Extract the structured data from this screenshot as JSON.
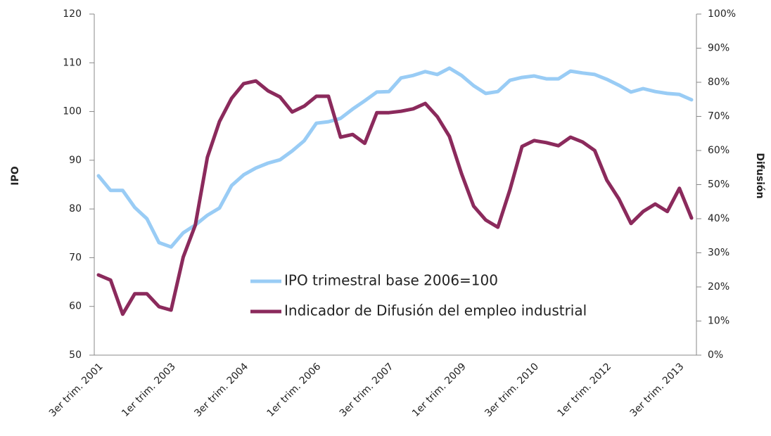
{
  "chart_data": {
    "type": "line",
    "y_label": "IPO",
    "y2_label": "Difusión",
    "categories": [
      "3er trim. 2001",
      null,
      null,
      null,
      null,
      null,
      "1er trim. 2003",
      null,
      null,
      null,
      null,
      null,
      "3er trim. 2004",
      null,
      null,
      null,
      null,
      null,
      "1er trim. 2006",
      null,
      null,
      null,
      null,
      null,
      "3er trim. 2007",
      null,
      null,
      null,
      null,
      null,
      "1er trim. 2009",
      null,
      null,
      null,
      null,
      null,
      "3er trim. 2010",
      null,
      null,
      null,
      null,
      null,
      "1er trim. 2012",
      null,
      null,
      null,
      null,
      null,
      "3er trim. 2013",
      null
    ],
    "ylim": [
      50,
      120
    ],
    "yticks": [
      50,
      60,
      70,
      80,
      90,
      100,
      110,
      120
    ],
    "y2lim": [
      0,
      100
    ],
    "y2ticks": [
      {
        "value": 0,
        "label": "0%"
      },
      {
        "value": 10,
        "label": "10%"
      },
      {
        "value": 20,
        "label": "20%"
      },
      {
        "value": 30,
        "label": "30%"
      },
      {
        "value": 40,
        "label": "40%"
      },
      {
        "value": 50,
        "label": "50%"
      },
      {
        "value": 60,
        "label": "60%"
      },
      {
        "value": 70,
        "label": "70%"
      },
      {
        "value": 80,
        "label": "80%"
      },
      {
        "value": 90,
        "label": "90%"
      },
      {
        "value": 100,
        "label": "100%"
      }
    ],
    "grid": false,
    "legend": "center",
    "series": [
      {
        "name": "IPO trimestral base 2006=100",
        "color": "#99ccf5",
        "values": [
          86.8,
          83.8,
          83.8,
          80.3,
          78,
          73.1,
          72.2,
          75.1,
          76.7,
          78.7,
          80.2,
          84.8,
          87,
          88.4,
          89.4,
          90.1,
          91.9,
          94,
          97.6,
          97.9,
          98.6,
          100.5,
          102.2,
          104,
          104.1,
          106.9,
          107.4,
          108.2,
          107.6,
          108.9,
          107.4,
          105.3,
          103.7,
          104.1,
          106.4,
          107,
          107.3,
          106.7,
          106.7,
          108.3,
          107.9,
          107.6,
          106.6,
          105.4,
          104,
          104.7,
          104.1,
          103.7,
          103.5,
          102.4
        ]
      },
      {
        "name": "Indicador de Difusión del empleo industrial",
        "color": "#8b2a5c",
        "axis": "y2",
        "values": [
          23.5,
          22,
          12,
          18,
          18,
          14.2,
          13.2,
          28.7,
          38.1,
          58,
          68.5,
          75.3,
          79.6,
          80.4,
          77.5,
          75.7,
          71.3,
          73,
          75.9,
          75.9,
          63.9,
          64.7,
          62.1,
          71.1,
          71.1,
          71.5,
          72.2,
          73.8,
          69.9,
          64.1,
          53.2,
          43.7,
          39.6,
          37.5,
          48.5,
          61.2,
          62.9,
          62.3,
          61.4,
          63.9,
          62.5,
          60,
          51.3,
          45.8,
          38.6,
          42.1,
          44.3,
          42.1,
          48.9,
          40.2
        ]
      }
    ]
  }
}
